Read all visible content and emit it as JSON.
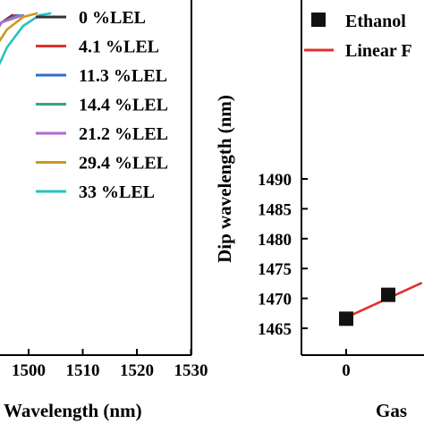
{
  "chart_data": [
    {
      "type": "line",
      "xlabel": "Wavelength (nm)",
      "ylabel": "",
      "x_ticks": [
        1500,
        1510,
        1520,
        1530
      ],
      "xlim": [
        1490,
        1530
      ],
      "legend_position": "top-right",
      "series": [
        {
          "name": "0 %LEL",
          "color": "#333333",
          "x": [
            1489,
            1492,
            1495,
            1497
          ],
          "y": [
            0.7,
            0.86,
            0.93,
            0.95
          ]
        },
        {
          "name": "4.1 %LEL",
          "color": "#e0302c",
          "x": [
            1489,
            1492,
            1495,
            1497.5
          ],
          "y": [
            0.7,
            0.86,
            0.93,
            0.95
          ]
        },
        {
          "name": "11.3 %LEL",
          "color": "#2f6ec8",
          "x": [
            1489,
            1492,
            1495,
            1498
          ],
          "y": [
            0.7,
            0.86,
            0.93,
            0.95
          ]
        },
        {
          "name": "14.4 %LEL",
          "color": "#3aa37a",
          "x": [
            1489,
            1492,
            1495,
            1498.5
          ],
          "y": [
            0.7,
            0.86,
            0.93,
            0.95
          ]
        },
        {
          "name": "21.2 %LEL",
          "color": "#b06ad6",
          "x": [
            1489,
            1492,
            1495,
            1499
          ],
          "y": [
            0.82,
            0.88,
            0.93,
            0.95
          ]
        },
        {
          "name": "29.4 %LEL",
          "color": "#c99a1c",
          "x": [
            1490,
            1493,
            1496,
            1499,
            1501.5
          ],
          "y": [
            0.72,
            0.84,
            0.91,
            0.945,
            0.955
          ]
        },
        {
          "name": "33 %LEL",
          "color": "#25c2c0",
          "x": [
            1490,
            1491,
            1493,
            1496,
            1499,
            1502,
            1504
          ],
          "y": [
            0.55,
            0.64,
            0.76,
            0.86,
            0.92,
            0.95,
            0.955
          ]
        }
      ]
    },
    {
      "type": "scatter",
      "xlabel": "Gas",
      "ylabel": "Dip wavelength (nm)",
      "y_ticks": [
        1465,
        1470,
        1475,
        1480,
        1485,
        1490
      ],
      "ylim": [
        1463,
        1492
      ],
      "x_ticks": [
        0
      ],
      "xlim": [
        -1,
        4
      ],
      "legend_position": "top-right",
      "series": [
        {
          "name": "Ethanol",
          "color": "#111111",
          "x": [
            0,
            1.0
          ],
          "y": [
            1466.6,
            1470.6
          ]
        },
        {
          "name": "Linear F",
          "color": "#e0302c",
          "x": [
            0,
            1.8
          ],
          "y": [
            1466.8,
            1472.6
          ]
        }
      ]
    }
  ]
}
